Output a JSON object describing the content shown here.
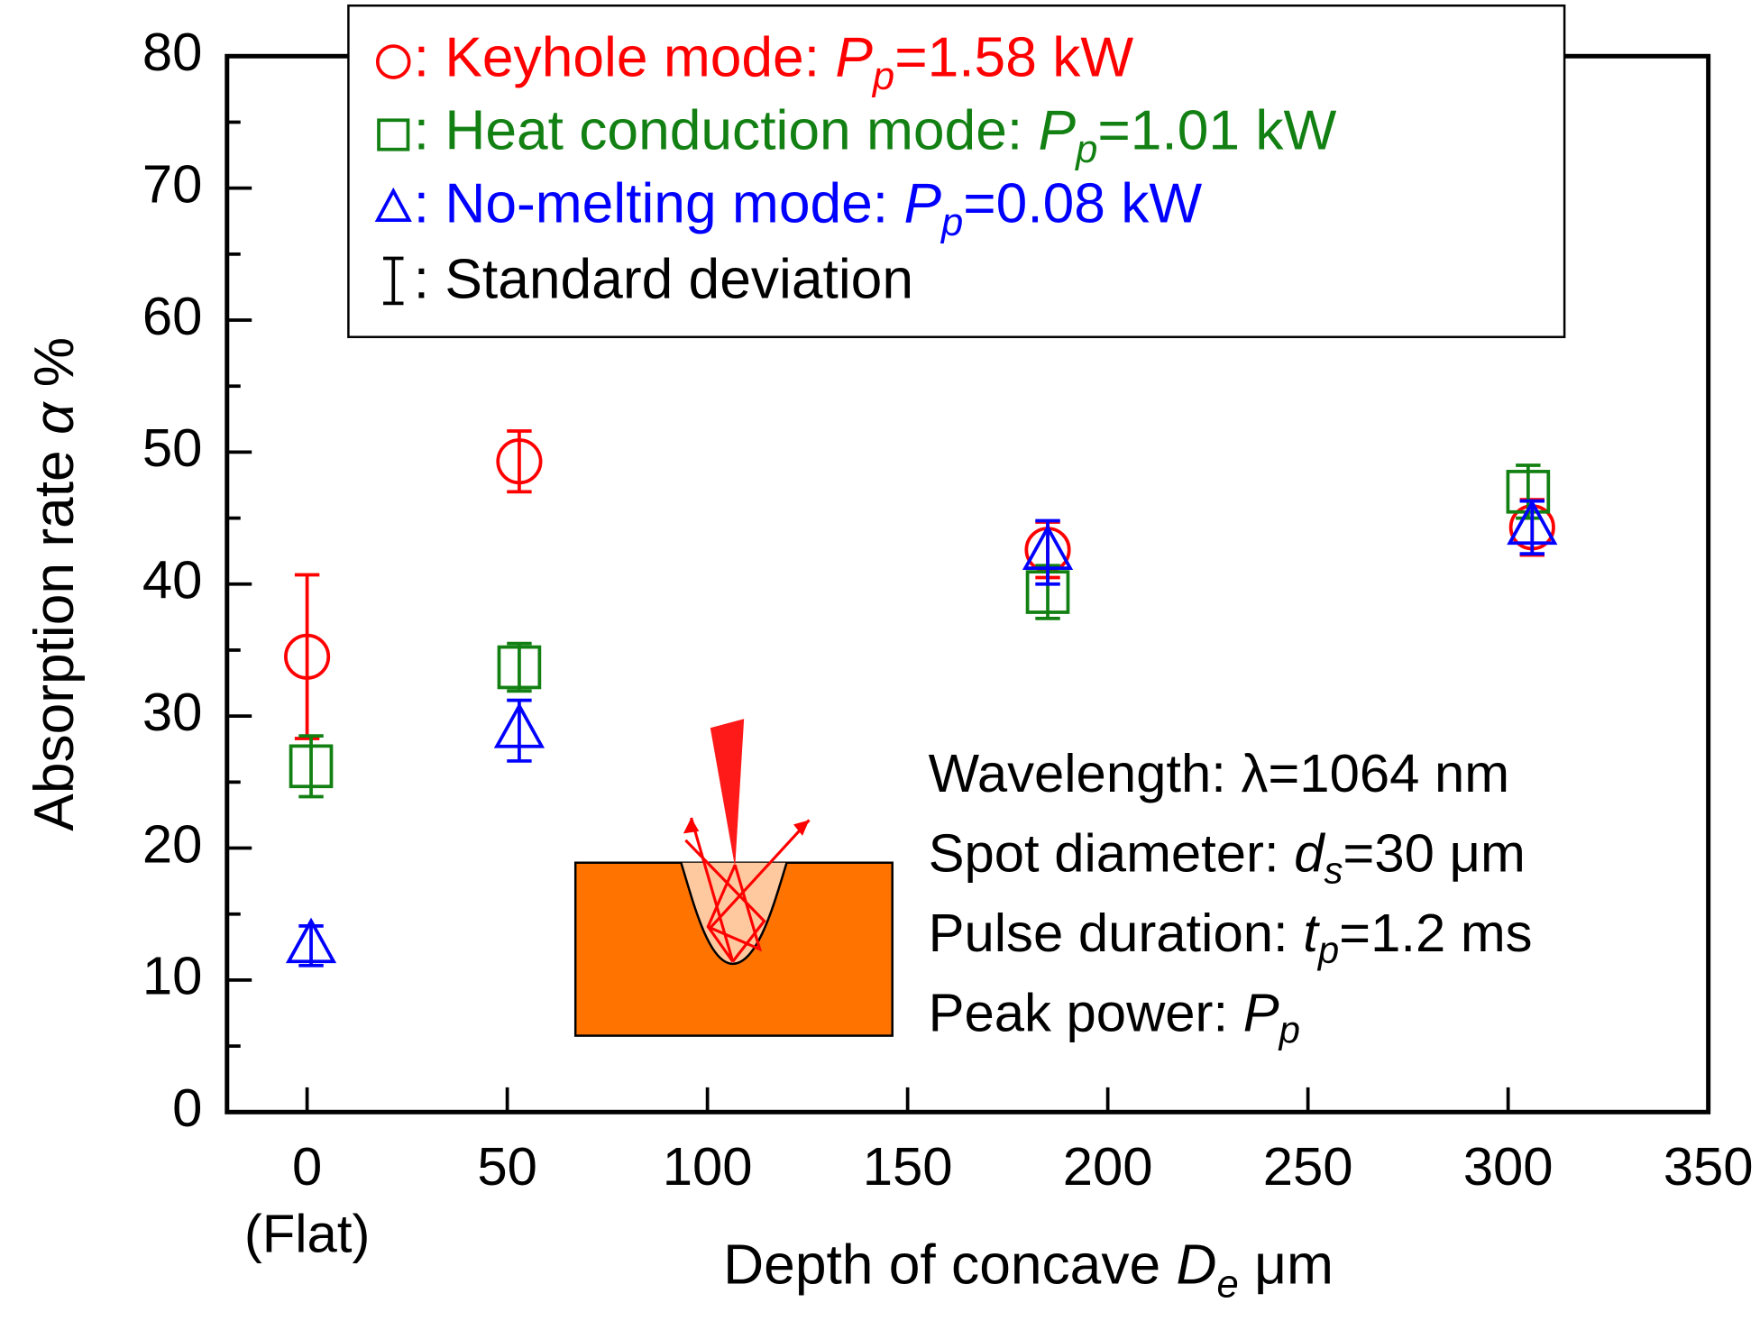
{
  "chart_data": {
    "type": "scatter",
    "x_label": {
      "parts": [
        "Depth of concave ",
        "D",
        "e",
        " μm"
      ],
      "styles": [
        "n",
        "i",
        "is",
        "n"
      ]
    },
    "y_label": {
      "parts": [
        "Absorption rate ",
        "α",
        " %"
      ],
      "styles": [
        "n",
        "i",
        "n"
      ]
    },
    "xlim": [
      -20,
      350
    ],
    "xticks": [
      0,
      50,
      100,
      150,
      200,
      250,
      300,
      350
    ],
    "x_tick_note": "(Flat)",
    "ylim": [
      0,
      80
    ],
    "yticks": [
      0,
      10,
      20,
      30,
      40,
      50,
      60,
      70,
      80
    ],
    "minor_yticks": [
      5,
      15,
      25,
      35,
      45,
      55,
      65,
      75
    ],
    "series": [
      {
        "name": {
          "parts": [
            ": Keyhole mode: ",
            "P",
            "p",
            "=1.58 kW"
          ],
          "styles": [
            "n",
            "i",
            "is",
            "n"
          ]
        },
        "marker": "circle",
        "color": "#ff0000",
        "x": [
          0,
          53,
          185,
          306
        ],
        "values": [
          34.5,
          49.3,
          42.6,
          44.3
        ],
        "errors": [
          6.2,
          2.3,
          2.1,
          2.1
        ]
      },
      {
        "name": {
          "parts": [
            ": Heat conduction mode: ",
            "P",
            "p",
            "=1.01 kW"
          ],
          "styles": [
            "n",
            "i",
            "is",
            "n"
          ]
        },
        "marker": "square",
        "color": "#128012",
        "x": [
          1,
          53,
          185,
          305
        ],
        "values": [
          26.2,
          33.7,
          39.4,
          47.0
        ],
        "errors": [
          2.3,
          1.8,
          2.0,
          2.0
        ]
      },
      {
        "name": {
          "parts": [
            ": No-melting mode: ",
            "P",
            "p",
            "=0.08 kW"
          ],
          "styles": [
            "n",
            "i",
            "is",
            "n"
          ]
        },
        "marker": "triangle",
        "color": "#0000ff",
        "x": [
          1,
          53,
          185,
          306
        ],
        "values": [
          12.6,
          28.9,
          42.4,
          44.3
        ],
        "errors": [
          1.5,
          2.3,
          2.4,
          2.0
        ]
      }
    ],
    "error_bar_legend": ": Standard deviation",
    "conditions": [
      {
        "parts": [
          "Wavelength: λ=1064 nm"
        ],
        "styles": [
          "n"
        ]
      },
      {
        "parts": [
          "Spot diameter: ",
          "d",
          "s",
          "=30 μm"
        ],
        "styles": [
          "n",
          "i",
          "is",
          "n"
        ]
      },
      {
        "parts": [
          "Pulse duration: ",
          "t",
          "p",
          "=1.2 ms"
        ],
        "styles": [
          "n",
          "i",
          "is",
          "n"
        ]
      },
      {
        "parts": [
          "Peak power: ",
          "P",
          "p"
        ],
        "styles": [
          "n",
          "i",
          "is"
        ]
      }
    ]
  }
}
